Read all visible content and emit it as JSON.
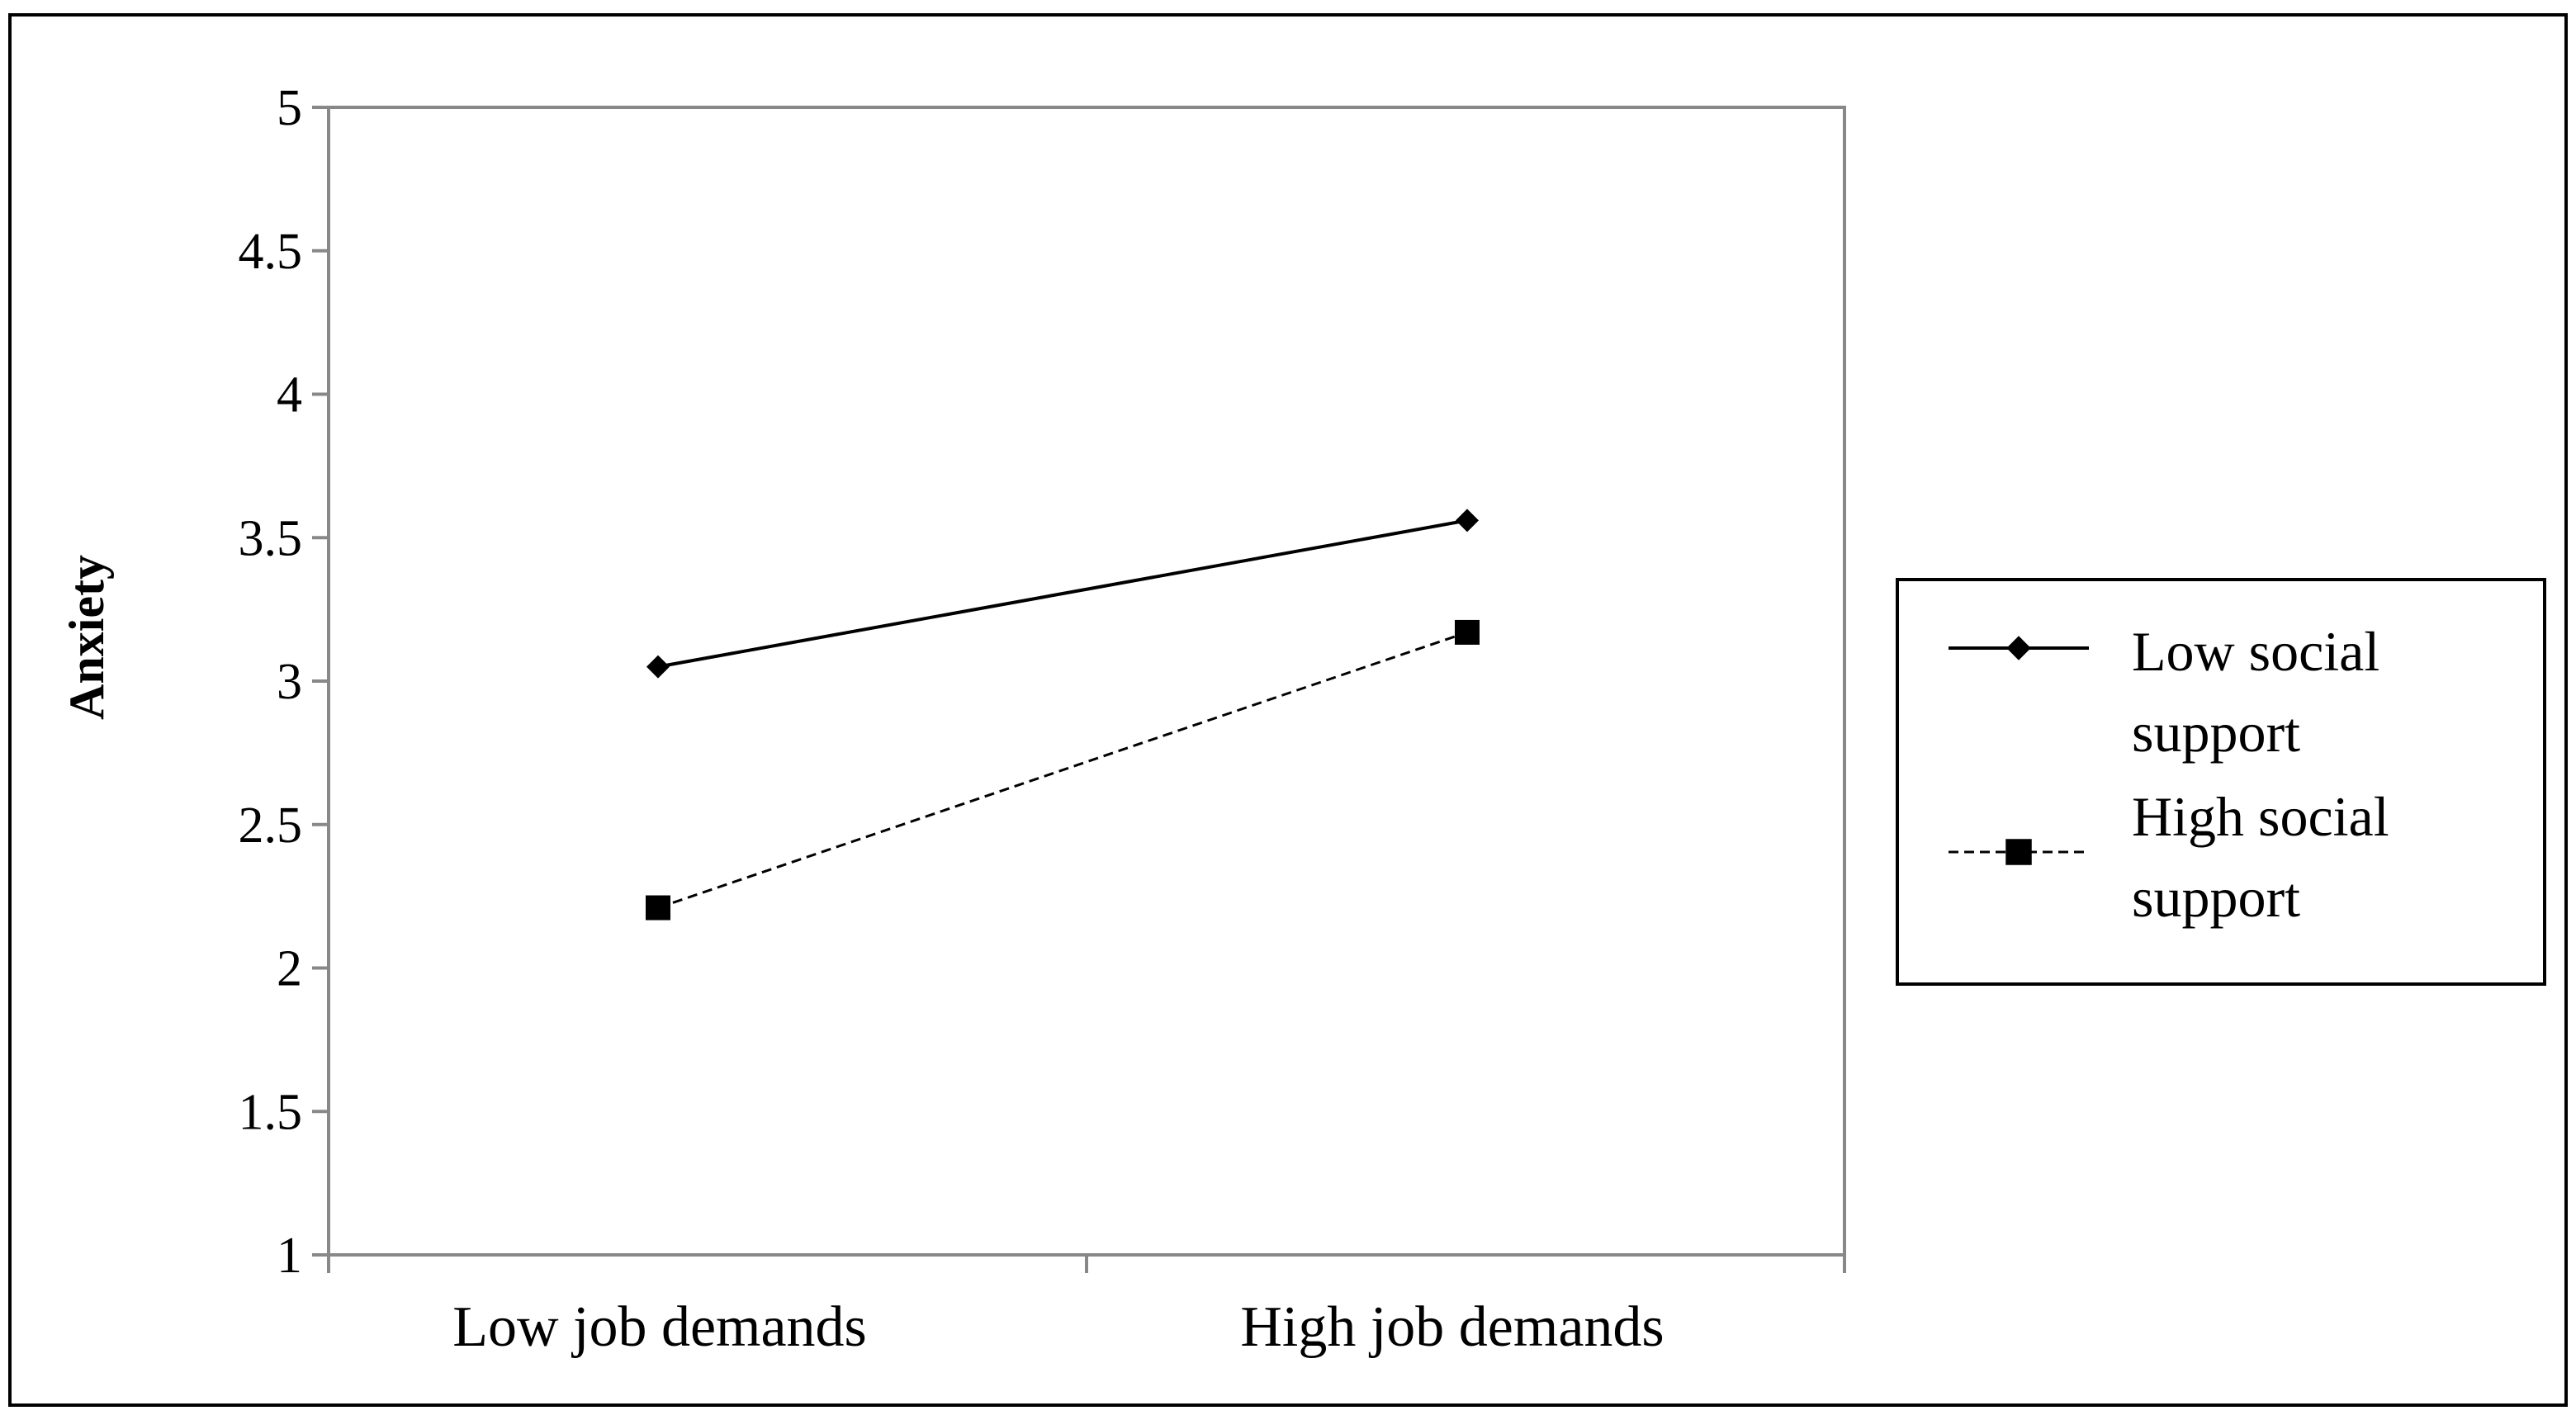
{
  "chart_data": {
    "type": "line",
    "title": "",
    "xlabel": "",
    "ylabel": "Anxiety",
    "ylim": [
      1,
      5
    ],
    "yticks": [
      "1",
      "1.5",
      "2",
      "2.5",
      "3",
      "3.5",
      "4",
      "4.5",
      "5"
    ],
    "categories": [
      "Low job demands",
      "High job demands"
    ],
    "grid": false,
    "legend_position": "right",
    "series": [
      {
        "name_lines": [
          "Low social",
          "support"
        ],
        "values": [
          3.05,
          3.56
        ],
        "marker": "diamond",
        "line_style": "solid",
        "color": "#000000"
      },
      {
        "name_lines": [
          "High social",
          "support"
        ],
        "values": [
          2.21,
          3.17
        ],
        "marker": "square",
        "line_style": "dashed",
        "color": "#000000"
      }
    ]
  }
}
